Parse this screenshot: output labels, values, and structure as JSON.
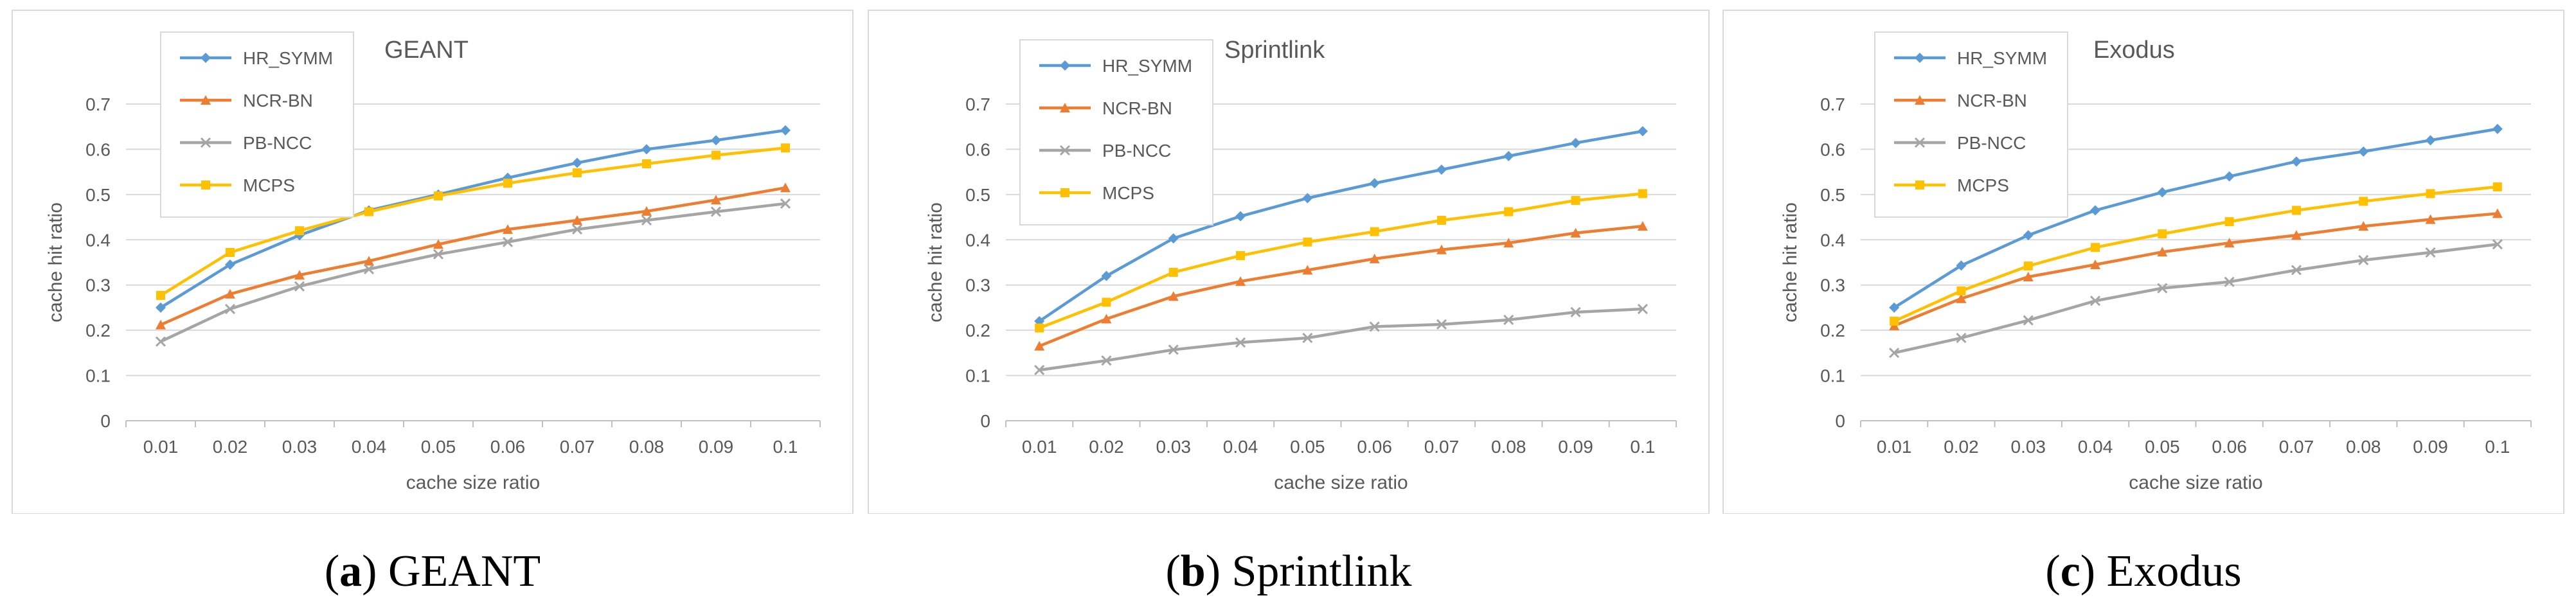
{
  "chart_data": [
    {
      "type": "line",
      "title": "GEANT",
      "xlabel": "cache size ratio",
      "ylabel": "cache hit ratio",
      "ylim": [
        0,
        0.7
      ],
      "yticks": [
        "0",
        "0.1",
        "0.2",
        "0.3",
        "0.4",
        "0.5",
        "0.6",
        "0.7"
      ],
      "categories": [
        "0.01",
        "0.02",
        "0.03",
        "0.04",
        "0.05",
        "0.06",
        "0.07",
        "0.08",
        "0.09",
        "0.1"
      ],
      "legend_position": "top-left",
      "caption": {
        "letter": "a",
        "name": "GEANT"
      },
      "series": [
        {
          "name": "HR_SYMM",
          "color": "#5B9BD5",
          "marker": "diamond",
          "values": [
            0.25,
            0.345,
            0.41,
            0.465,
            0.5,
            0.537,
            0.57,
            0.6,
            0.62,
            0.642
          ]
        },
        {
          "name": "NCR-BN",
          "color": "#ED7D31",
          "marker": "triangle",
          "values": [
            0.212,
            0.28,
            0.322,
            0.353,
            0.39,
            0.423,
            0.443,
            0.463,
            0.488,
            0.515
          ]
        },
        {
          "name": "PB-NCC",
          "color": "#A5A5A5",
          "marker": "x",
          "values": [
            0.175,
            0.247,
            0.297,
            0.335,
            0.368,
            0.395,
            0.423,
            0.443,
            0.462,
            0.48
          ]
        },
        {
          "name": "MCPS",
          "color": "#FFC000",
          "marker": "square",
          "values": [
            0.277,
            0.372,
            0.42,
            0.462,
            0.497,
            0.525,
            0.548,
            0.568,
            0.587,
            0.603
          ]
        }
      ]
    },
    {
      "type": "line",
      "title": "Sprintlink",
      "xlabel": "cache size ratio",
      "ylabel": "cache hit ratio",
      "ylim": [
        0,
        0.7
      ],
      "yticks": [
        "0",
        "0.1",
        "0.2",
        "0.3",
        "0.4",
        "0.5",
        "0.6",
        "0.7"
      ],
      "categories": [
        "0.01",
        "0.02",
        "0.03",
        "0.04",
        "0.05",
        "0.06",
        "0.07",
        "0.08",
        "0.09",
        "0.1"
      ],
      "legend_position": "top-left",
      "caption": {
        "letter": "b",
        "name": "Sprintlink"
      },
      "series": [
        {
          "name": "HR_SYMM",
          "color": "#5B9BD5",
          "marker": "diamond",
          "values": [
            0.22,
            0.32,
            0.403,
            0.452,
            0.492,
            0.525,
            0.555,
            0.585,
            0.614,
            0.64
          ]
        },
        {
          "name": "NCR-BN",
          "color": "#ED7D31",
          "marker": "triangle",
          "values": [
            0.165,
            0.225,
            0.275,
            0.308,
            0.333,
            0.358,
            0.378,
            0.393,
            0.415,
            0.43
          ]
        },
        {
          "name": "PB-NCC",
          "color": "#A5A5A5",
          "marker": "x",
          "values": [
            0.112,
            0.133,
            0.157,
            0.173,
            0.183,
            0.208,
            0.213,
            0.223,
            0.24,
            0.247
          ]
        },
        {
          "name": "MCPS",
          "color": "#FFC000",
          "marker": "square",
          "values": [
            0.205,
            0.262,
            0.328,
            0.365,
            0.395,
            0.418,
            0.443,
            0.462,
            0.487,
            0.502
          ]
        }
      ]
    },
    {
      "type": "line",
      "title": "Exodus",
      "xlabel": "cache size ratio",
      "ylabel": "cache hit ratio",
      "ylim": [
        0,
        0.7
      ],
      "yticks": [
        "0",
        "0.1",
        "0.2",
        "0.3",
        "0.4",
        "0.5",
        "0.6",
        "0.7"
      ],
      "categories": [
        "0.01",
        "0.02",
        "0.03",
        "0.04",
        "0.05",
        "0.06",
        "0.07",
        "0.08",
        "0.09",
        "0.1"
      ],
      "legend_position": "top-left",
      "caption": {
        "letter": "c",
        "name": "Exodus"
      },
      "series": [
        {
          "name": "HR_SYMM",
          "color": "#5B9BD5",
          "marker": "diamond",
          "values": [
            0.25,
            0.343,
            0.41,
            0.465,
            0.505,
            0.54,
            0.573,
            0.595,
            0.62,
            0.645
          ]
        },
        {
          "name": "NCR-BN",
          "color": "#ED7D31",
          "marker": "triangle",
          "values": [
            0.21,
            0.27,
            0.318,
            0.345,
            0.373,
            0.393,
            0.41,
            0.43,
            0.445,
            0.458
          ]
        },
        {
          "name": "PB-NCC",
          "color": "#A5A5A5",
          "marker": "x",
          "values": [
            0.15,
            0.183,
            0.222,
            0.265,
            0.293,
            0.307,
            0.333,
            0.355,
            0.372,
            0.39
          ]
        },
        {
          "name": "MCPS",
          "color": "#FFC000",
          "marker": "square",
          "values": [
            0.22,
            0.287,
            0.342,
            0.383,
            0.413,
            0.44,
            0.465,
            0.485,
            0.502,
            0.517
          ]
        }
      ]
    }
  ]
}
